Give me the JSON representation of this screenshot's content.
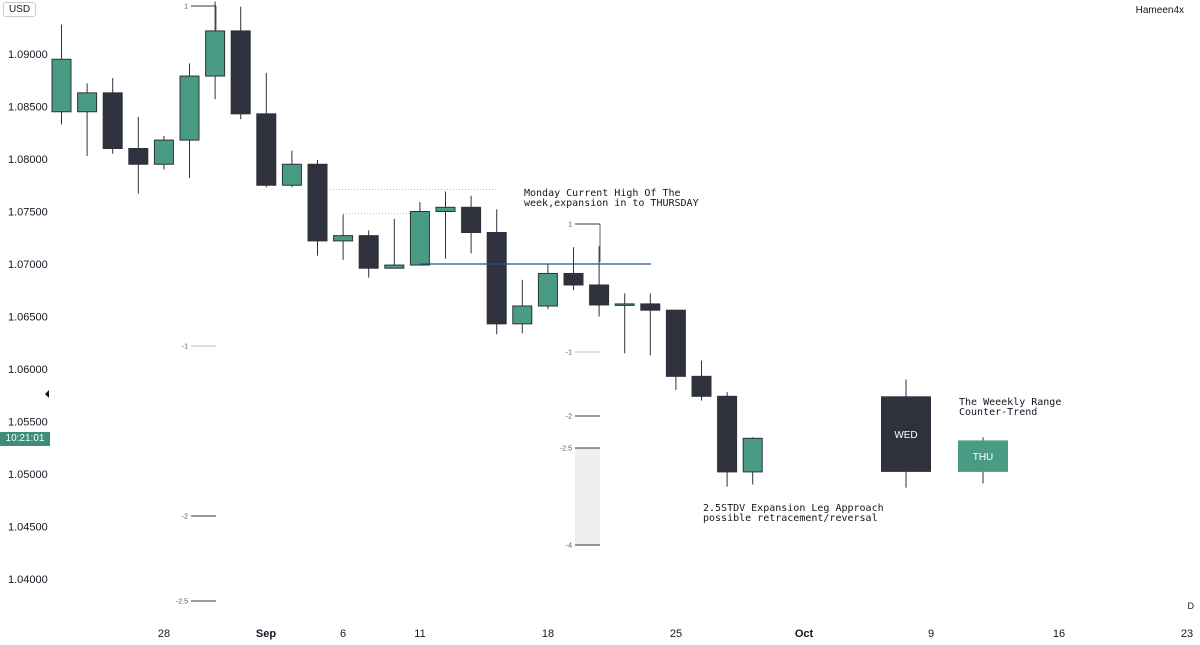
{
  "header": {
    "currency": "USD",
    "author": "Hameen4x"
  },
  "time_badge": "10:21:01",
  "period": "D",
  "colors": {
    "bull": "#4a9b84",
    "bear": "#2f313c",
    "level_line": "#2a4d8f",
    "wick": "#2f313c",
    "badge": "#3d8e77"
  },
  "chart_data": {
    "type": "candlestick",
    "ylim": [
      1.0365,
      1.0965
    ],
    "y_ticks": [
      "1.09000",
      "1.08500",
      "1.08000",
      "1.07500",
      "1.07000",
      "1.06500",
      "1.06000",
      "1.05500",
      "1.05000",
      "1.04500",
      "1.04000"
    ],
    "x_labels": [
      "28",
      "Sep",
      "6",
      "11",
      "18",
      "25",
      "Oct",
      "9",
      "16",
      "23"
    ],
    "candles": [
      {
        "o": 1.0845,
        "h": 1.0928,
        "l": 1.0833,
        "c": 1.0895
      },
      {
        "o": 1.0845,
        "h": 1.0872,
        "l": 1.0803,
        "c": 1.0863
      },
      {
        "o": 1.0863,
        "h": 1.0877,
        "l": 1.0805,
        "c": 1.081
      },
      {
        "o": 1.081,
        "h": 1.084,
        "l": 1.0767,
        "c": 1.0795
      },
      {
        "o": 1.0795,
        "h": 1.0822,
        "l": 1.079,
        "c": 1.0818
      },
      {
        "o": 1.0818,
        "h": 1.0891,
        "l": 1.0782,
        "c": 1.0879
      },
      {
        "o": 1.0879,
        "h": 1.095,
        "l": 1.0857,
        "c": 1.0922
      },
      {
        "o": 1.0922,
        "h": 1.0945,
        "l": 1.0838,
        "c": 1.0843
      },
      {
        "o": 1.0843,
        "h": 1.0882,
        "l": 1.0773,
        "c": 1.0775
      },
      {
        "o": 1.0775,
        "h": 1.0808,
        "l": 1.0773,
        "c": 1.0795
      },
      {
        "o": 1.0795,
        "h": 1.0799,
        "l": 1.0708,
        "c": 1.0722
      },
      {
        "o": 1.0722,
        "h": 1.0747,
        "l": 1.0704,
        "c": 1.0727
      },
      {
        "o": 1.0727,
        "h": 1.0732,
        "l": 1.0687,
        "c": 1.0696
      },
      {
        "o": 1.0696,
        "h": 1.0743,
        "l": 1.0696,
        "c": 1.0699
      },
      {
        "o": 1.0699,
        "h": 1.0759,
        "l": 1.0699,
        "c": 1.075
      },
      {
        "o": 1.075,
        "h": 1.0769,
        "l": 1.0705,
        "c": 1.0754
      },
      {
        "o": 1.0754,
        "h": 1.0765,
        "l": 1.071,
        "c": 1.073
      },
      {
        "o": 1.073,
        "h": 1.0752,
        "l": 1.0633,
        "c": 1.0643
      },
      {
        "o": 1.0643,
        "h": 1.0685,
        "l": 1.0634,
        "c": 1.066
      },
      {
        "o": 1.066,
        "h": 1.07,
        "l": 1.0657,
        "c": 1.0691
      },
      {
        "o": 1.0691,
        "h": 1.0716,
        "l": 1.0675,
        "c": 1.068
      },
      {
        "o": 1.068,
        "h": 1.0717,
        "l": 1.065,
        "c": 1.0661
      },
      {
        "o": 1.0661,
        "h": 1.0672,
        "l": 1.0615,
        "c": 1.0662
      },
      {
        "o": 1.0662,
        "h": 1.0672,
        "l": 1.0613,
        "c": 1.0656
      },
      {
        "o": 1.0656,
        "h": 1.0656,
        "l": 1.058,
        "c": 1.0593
      },
      {
        "o": 1.0593,
        "h": 1.0608,
        "l": 1.057,
        "c": 1.0574
      },
      {
        "o": 1.0574,
        "h": 1.0578,
        "l": 1.0488,
        "c": 1.0502
      },
      {
        "o": 1.0502,
        "h": 1.0535,
        "l": 1.049,
        "c": 1.0534
      }
    ],
    "level_line": 1.07,
    "range_candles": [
      {
        "label": "WED",
        "o": 1.0574,
        "h": 1.059,
        "l": 1.0487,
        "c": 1.0502
      },
      {
        "label": "THU",
        "o": 1.0502,
        "h": 1.0535,
        "l": 1.0491,
        "c": 1.0532
      }
    ],
    "fib_labels": [
      "1",
      "-1",
      "-2",
      "-2.5",
      "1",
      "-1",
      "-2",
      "-2.5",
      "-4"
    ],
    "annotations": [
      {
        "line1": "Monday Current High Of The",
        "line2": "week,expansion in to THURSDAY"
      },
      {
        "line1": "The Weeekly Range",
        "line2": "Counter-Trend"
      },
      {
        "line1": "2.5STDV Expansion Leg Approach",
        "line2": "possible retracement/reversal"
      }
    ]
  }
}
